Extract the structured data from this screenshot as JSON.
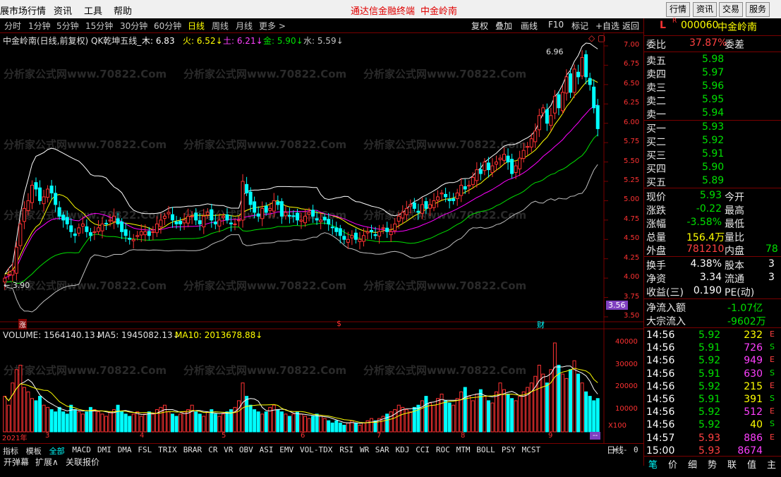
{
  "menubar": {
    "items": [
      "展市场行情",
      "资讯",
      "工具",
      "帮助"
    ],
    "app_title": "通达信金融终端",
    "stock_title": "中金岭南",
    "right_buttons": [
      "行情",
      "资讯",
      "交易",
      "服务"
    ]
  },
  "period_tabs": {
    "items": [
      "分时",
      "1分钟",
      "5分钟",
      "15分钟",
      "30分钟",
      "60分钟",
      "日线",
      "周线",
      "月线",
      "更多 >"
    ],
    "selected": "日线"
  },
  "toolbar": {
    "items": [
      "复权",
      "叠加",
      "画线",
      "F10",
      "标记",
      "+自选",
      "返回"
    ]
  },
  "indicator_line": {
    "name": "中金岭南(日线,前复权) QK乾坤五线_",
    "mu": "木: 6.83",
    "huo": "火: 6.52↓",
    "tu": "土: 6.21↓",
    "jin": "金: 5.90↓",
    "shui": "水: 5.59↓"
  },
  "volume_line": {
    "volume": "VOLUME: 1564140.13↓",
    "ma5": "MA5: 1945082.13↓",
    "ma10": "MA10: 2013678.88↓"
  },
  "price_axis": [
    "7.00",
    "6.75",
    "6.50",
    "6.25",
    "6.00",
    "5.75",
    "5.50",
    "5.25",
    "5.00",
    "4.75",
    "4.50",
    "4.25",
    "4.00",
    "3.75",
    "3.50"
  ],
  "volume_axis": [
    "40000",
    "30000",
    "20000",
    "10000"
  ],
  "volume_unit": "X100",
  "current_price_tag": "3.56",
  "annotations": {
    "high": "6.96",
    "low": "3.90",
    "markers": [
      "涨",
      "$",
      "财"
    ]
  },
  "date_axis": [
    "2021年",
    "3",
    "4",
    "5",
    "6",
    "7",
    "8",
    "9"
  ],
  "date_axis_tag": "--",
  "watermark": "分析家公式网www.70822.Com",
  "quote_panel": {
    "header": {
      "flags": "L",
      "r_flag": "R",
      "code": "000060",
      "name": "中金岭南"
    },
    "ratio": {
      "label": "委比",
      "value": "37.87%",
      "label2": "委差"
    },
    "sells": [
      {
        "label": "卖五",
        "price": "5.98"
      },
      {
        "label": "卖四",
        "price": "5.97"
      },
      {
        "label": "卖三",
        "price": "5.96"
      },
      {
        "label": "卖二",
        "price": "5.95"
      },
      {
        "label": "卖一",
        "price": "5.94"
      }
    ],
    "buys": [
      {
        "label": "买一",
        "price": "5.93"
      },
      {
        "label": "买二",
        "price": "5.92"
      },
      {
        "label": "买三",
        "price": "5.91"
      },
      {
        "label": "买四",
        "price": "5.90"
      },
      {
        "label": "买五",
        "price": "5.89"
      }
    ],
    "stats": [
      {
        "l1": "现价",
        "v1": "5.93",
        "l2": "今开",
        "v2": ""
      },
      {
        "l1": "涨跌",
        "v1": "-0.22",
        "l2": "最高",
        "v2": ""
      },
      {
        "l1": "涨幅",
        "v1": "-3.58%",
        "l2": "最低",
        "v2": ""
      },
      {
        "l1": "总量",
        "v1": "156.4万",
        "l2": "量比",
        "v2": ""
      },
      {
        "l1": "外盘",
        "v1": "781210",
        "l2": "内盘",
        "v2": "78"
      }
    ],
    "stats2": [
      {
        "l1": "换手",
        "v1": "4.38%",
        "l2": "股本",
        "v2": "3"
      },
      {
        "l1": "净资",
        "v1": "3.34",
        "l2": "流通",
        "v2": "3"
      },
      {
        "l1": "收益(三)",
        "v1": "0.190",
        "l2": "PE(动)",
        "v2": ""
      }
    ],
    "flows": [
      {
        "label": "净流入额",
        "value": "-1.07亿"
      },
      {
        "label": "大宗流入",
        "value": "-9602万"
      }
    ],
    "ticks": [
      {
        "time": "14:56",
        "price": "5.92",
        "vol": "232",
        "flag": "E"
      },
      {
        "time": "14:56",
        "price": "5.91",
        "vol": "726",
        "flag": "S"
      },
      {
        "time": "14:56",
        "price": "5.92",
        "vol": "949",
        "flag": "E"
      },
      {
        "time": "14:56",
        "price": "5.91",
        "vol": "630",
        "flag": "S"
      },
      {
        "time": "14:56",
        "price": "5.92",
        "vol": "215",
        "flag": "E"
      },
      {
        "time": "14:56",
        "price": "5.91",
        "vol": "391",
        "flag": "S"
      },
      {
        "time": "14:56",
        "price": "5.92",
        "vol": "512",
        "flag": "E"
      },
      {
        "time": "14:56",
        "price": "5.92",
        "vol": "40",
        "flag": "S"
      },
      {
        "time": "14:57",
        "price": "5.93",
        "vol": "886",
        "flag": "E"
      },
      {
        "time": "15:00",
        "price": "5.93",
        "vol": "8674",
        "flag": ""
      }
    ],
    "bottom_tabs": [
      "笔",
      "价",
      "细",
      "势",
      "联",
      "值",
      "主"
    ]
  },
  "indicator_tabs": [
    "指标",
    "模板",
    "全部",
    "MACD",
    "DMI",
    "DMA",
    "FSL",
    "TRIX",
    "BRAR",
    "CR",
    "VR",
    "OBV",
    "ASI",
    "EMV",
    "VOL-TDX",
    "RSI",
    "WR",
    "SAR",
    "KDJ",
    "CCI",
    "ROC",
    "MTM",
    "BOLL",
    "PSY",
    "MCST"
  ],
  "indicator_tabs_selected": "全部",
  "period_label": "日线",
  "zoom_controls": [
    "+",
    "-",
    "0"
  ],
  "statusbar": [
    "开弹幕",
    "扩展∧",
    "关联报价"
  ],
  "colors": {
    "up": "#ff3232",
    "down": "#00ffff",
    "mu": "#ffffff",
    "huo": "#ffff00",
    "tu": "#ff00ff",
    "jin": "#00e000",
    "shui": "#c0c0c0",
    "grid": "#7a0000",
    "price_axis": "#ff3232"
  },
  "chart_data": {
    "type": "candlestick",
    "title": "中金岭南(日线,前复权)",
    "ylim": [
      3.5,
      7.05
    ],
    "volume_ylim": [
      0,
      45000
    ],
    "close": [
      4.0,
      4.05,
      4.1,
      4.4,
      4.7,
      4.9,
      5.0,
      5.2,
      5.15,
      5.0,
      5.05,
      5.15,
      5.1,
      4.95,
      4.8,
      4.75,
      4.7,
      4.6,
      4.55,
      4.65,
      4.7,
      4.6,
      4.55,
      4.6,
      4.65,
      4.7,
      4.7,
      4.75,
      4.8,
      4.7,
      4.6,
      4.55,
      4.5,
      4.5,
      4.55,
      4.6,
      4.6,
      4.55,
      4.6,
      4.7,
      4.75,
      4.8,
      4.85,
      4.75,
      4.7,
      4.7,
      4.75,
      4.8,
      4.8,
      4.75,
      4.7,
      4.8,
      4.85,
      4.75,
      4.7,
      4.75,
      4.8,
      4.75,
      4.7,
      4.7,
      4.75,
      5.25,
      5.1,
      4.95,
      4.85,
      4.8,
      4.9,
      4.85,
      4.9,
      5.0,
      4.95,
      4.8,
      4.85,
      4.8,
      4.8,
      4.75,
      4.75,
      4.8,
      4.85,
      4.8,
      4.75,
      4.75,
      4.75,
      4.7,
      4.65,
      4.6,
      4.55,
      4.5,
      4.5,
      4.55,
      4.5,
      4.5,
      4.55,
      4.6,
      4.6,
      4.55,
      4.6,
      4.65,
      4.6,
      4.6,
      4.7,
      4.8,
      4.85,
      4.9,
      4.95,
      4.9,
      4.85,
      4.95,
      4.9,
      4.95,
      5.0,
      5.05,
      5.1,
      5.05,
      5.0,
      5.0,
      5.1,
      5.2,
      5.15,
      5.2,
      5.3,
      5.4,
      5.35,
      5.5,
      5.4,
      5.45,
      5.5,
      5.55,
      5.6,
      5.5,
      5.35,
      5.45,
      5.55,
      5.65,
      5.7,
      5.8,
      5.9,
      6.1,
      6.2,
      6.0,
      6.1,
      6.35,
      6.2,
      6.4,
      6.6,
      6.4,
      6.7,
      6.6,
      6.85,
      6.6,
      6.5,
      6.2,
      5.93
    ],
    "volume": [
      16000,
      12000,
      22000,
      28000,
      30000,
      20000,
      18000,
      15000,
      14000,
      16000,
      12000,
      11000,
      10000,
      9000,
      11000,
      9000,
      8000,
      12000,
      10000,
      9000,
      8000,
      9000,
      11000,
      10000,
      9000,
      8000,
      7000,
      9000,
      10000,
      12000,
      9000,
      8000,
      7000,
      8000,
      9000,
      7000,
      8000,
      9000,
      8000,
      10000,
      11000,
      12000,
      9000,
      8000,
      7000,
      8000,
      9000,
      10000,
      12000,
      9000,
      8000,
      7000,
      9000,
      10000,
      8000,
      7000,
      8000,
      9000,
      10000,
      11000,
      14000,
      22000,
      16000,
      12000,
      10000,
      9000,
      8000,
      9000,
      11000,
      12000,
      10000,
      9000,
      8000,
      7000,
      8000,
      9000,
      8000,
      7000,
      6000,
      7000,
      8000,
      7000,
      6000,
      5000,
      4000,
      5000,
      4000,
      3000,
      4000,
      5000,
      4000,
      3000,
      4000,
      5000,
      6000,
      5000,
      6000,
      7000,
      8000,
      9000,
      10000,
      12000,
      11000,
      10000,
      9000,
      11000,
      12000,
      14000,
      16000,
      13000,
      12000,
      15000,
      17000,
      14000,
      13000,
      12000,
      15000,
      18000,
      20000,
      16000,
      14000,
      17000,
      19000,
      16000,
      14000,
      13000,
      18000,
      22000,
      19000,
      17000,
      15000,
      14000,
      16000,
      18000,
      20000,
      22000,
      25000,
      30000,
      26000,
      22000,
      28000,
      40000,
      30000,
      26000,
      24000,
      28000,
      32000,
      26000,
      22000,
      18000,
      16000,
      14000,
      15000
    ]
  }
}
